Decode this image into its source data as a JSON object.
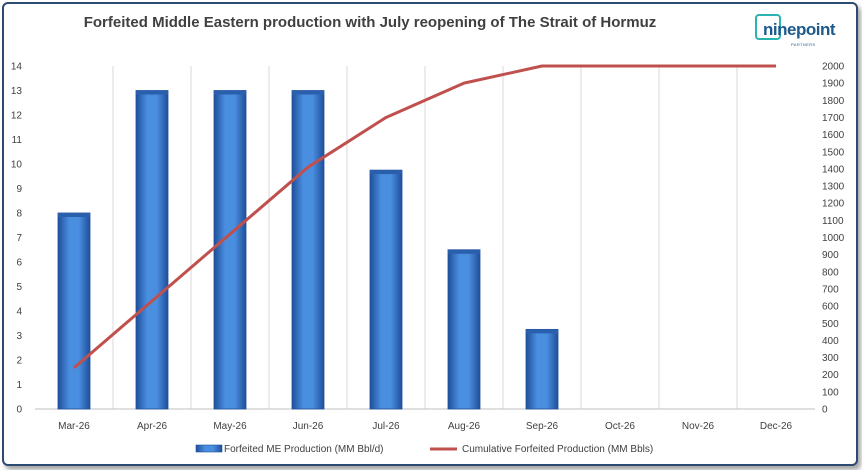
{
  "logo": {
    "name": "ninepoint",
    "sub": "PARTNERS"
  },
  "chart_data": {
    "type": "bar",
    "title": "Forfeited Middle Eastern production with July reopening of The Strait of Hormuz",
    "categories": [
      "Mar-26",
      "Apr-26",
      "May-26",
      "Jun-26",
      "Jul-26",
      "Aug-26",
      "Sep-26",
      "Oct-26",
      "Nov-26",
      "Dec-26"
    ],
    "series": [
      {
        "name": "Forfeited ME Production (MM Bbl/d)",
        "type": "bar",
        "axis": "left",
        "color": "#3a78c9",
        "values": [
          8,
          13,
          13,
          13,
          9.75,
          6.5,
          3.25,
          0,
          0,
          0
        ]
      },
      {
        "name": "Cumulative Forfeited Production (MM Bbls)",
        "type": "line",
        "axis": "right",
        "color": "#c0504d",
        "values": [
          240,
          630,
          1020,
          1410,
          1700,
          1900,
          2000,
          2000,
          2000,
          2000
        ]
      }
    ],
    "y_left": {
      "min": 0,
      "max": 14,
      "step": 1
    },
    "y_right": {
      "min": 0,
      "max": 2000,
      "step": 100
    },
    "legend_position": "bottom",
    "grid": "vertical-category-separators"
  }
}
